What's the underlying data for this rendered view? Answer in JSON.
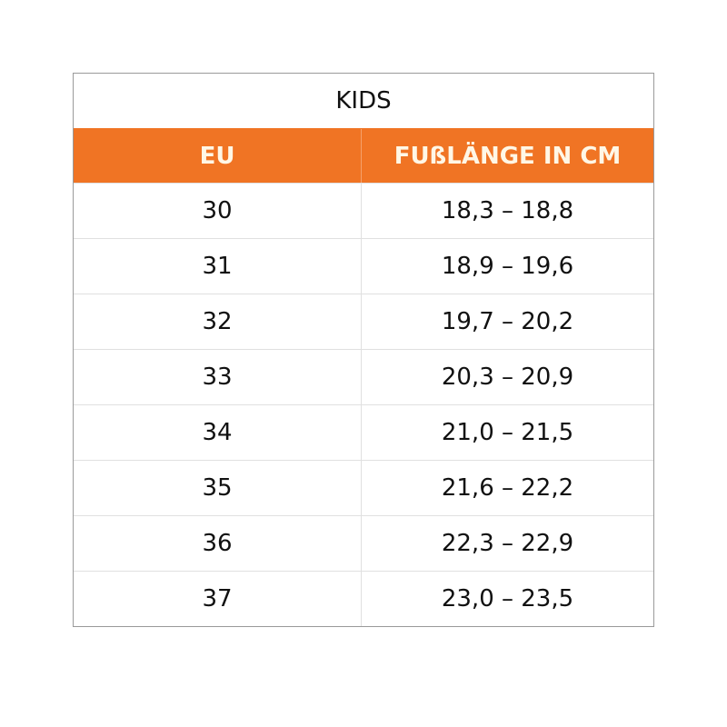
{
  "title": "KIDS",
  "accent_color": "#f07424",
  "headers": [
    "EU",
    "FUßLÄNGE IN CM"
  ],
  "rows": [
    [
      "30",
      "18,3 – 18,8"
    ],
    [
      "31",
      "18,9 – 19,6"
    ],
    [
      "32",
      "19,7 – 20,2"
    ],
    [
      "33",
      "20,3 – 20,9"
    ],
    [
      "34",
      "21,0 – 21,5"
    ],
    [
      "35",
      "21,6 – 22,2"
    ],
    [
      "36",
      "22,3 – 22,9"
    ],
    [
      "37",
      "23,0 – 23,5"
    ]
  ]
}
